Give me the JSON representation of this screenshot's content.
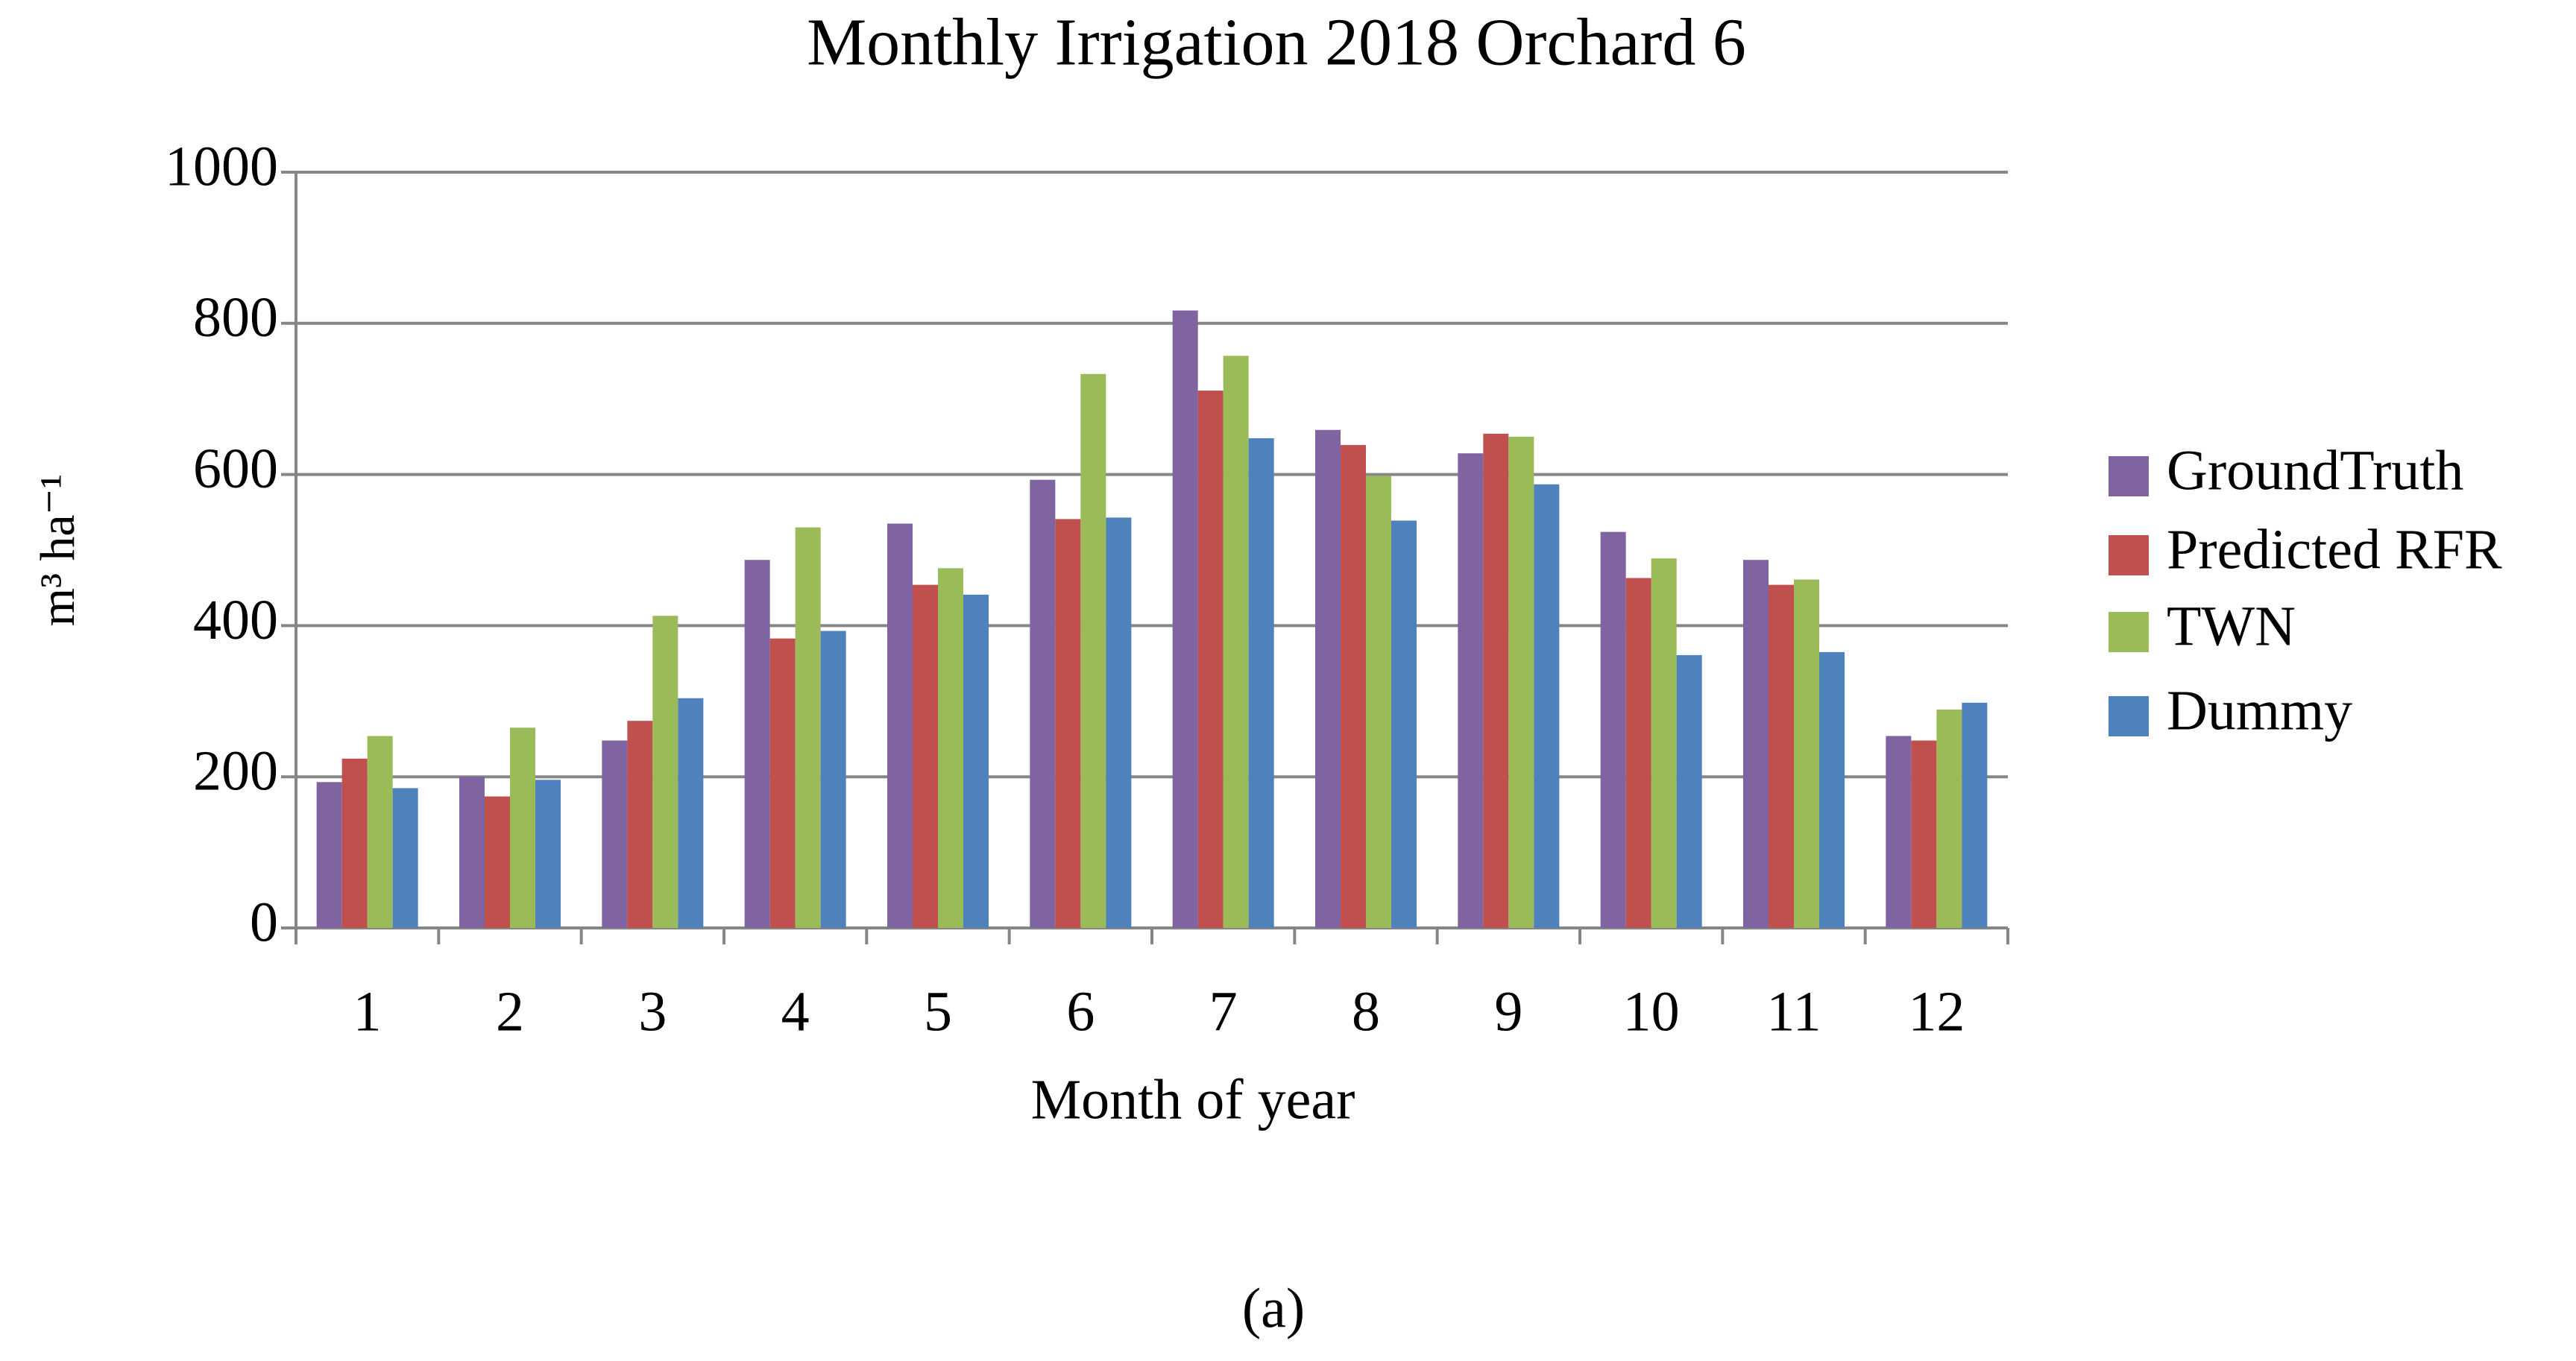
{
  "chart_data": {
    "type": "bar",
    "title": "Monthly Irrigation 2018 Orchard 6",
    "x_label": "Month of year",
    "y_label": "m³ ha⁻¹",
    "caption": "(a)",
    "categories": [
      "1",
      "2",
      "3",
      "4",
      "5",
      "6",
      "7",
      "8",
      "9",
      "10",
      "11",
      "12"
    ],
    "series": [
      {
        "name": "GroundTruth",
        "color": "#8064a2",
        "values": [
          193,
          200,
          248,
          487,
          535,
          593,
          817,
          659,
          628,
          524,
          487,
          254
        ]
      },
      {
        "name": "Predicted RFR",
        "color": "#c0504d",
        "values": [
          224,
          174,
          274,
          383,
          454,
          541,
          711,
          639,
          654,
          463,
          454,
          248
        ]
      },
      {
        "name": "TWN",
        "color": "#9bbb59",
        "values": [
          254,
          265,
          413,
          530,
          476,
          733,
          757,
          598,
          650,
          489,
          461,
          289
        ]
      },
      {
        "name": "Dummy",
        "color": "#4f81bd",
        "values": [
          185,
          196,
          304,
          393,
          441,
          543,
          648,
          539,
          587,
          361,
          365,
          298
        ]
      }
    ],
    "ylim": [
      0,
      1000
    ],
    "yticks": [
      0,
      200,
      400,
      600,
      800,
      1000
    ],
    "grid": true,
    "legend": "right"
  }
}
